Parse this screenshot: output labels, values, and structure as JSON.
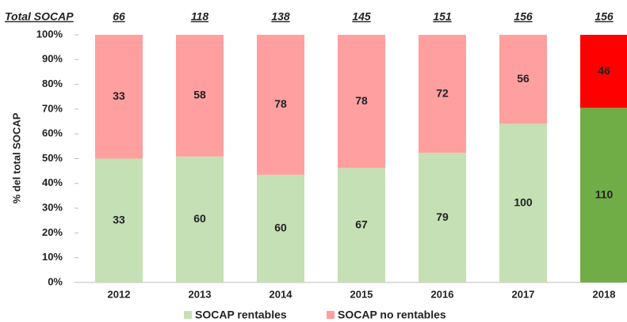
{
  "chart_data": {
    "type": "bar",
    "stacking": "percent",
    "totals_label": "Total SOCAP",
    "totals": [
      66,
      118,
      138,
      145,
      151,
      156,
      156
    ],
    "y_label": "% del total SOCAP",
    "categories": [
      "2012",
      "2013",
      "2014",
      "2015",
      "2016",
      "2017",
      "2018"
    ],
    "series": [
      {
        "name": "SOCAP rentables",
        "color": "#c5e0b4",
        "colors": [
          "#c5e0b4",
          "#c5e0b4",
          "#c5e0b4",
          "#c5e0b4",
          "#c5e0b4",
          "#c5e0b4",
          "#70ad47"
        ],
        "values": [
          33,
          60,
          60,
          67,
          79,
          100,
          110
        ]
      },
      {
        "name": "SOCAP no rentables",
        "color": "#ff9f9f",
        "colors": [
          "#ff9f9f",
          "#ff9f9f",
          "#ff9f9f",
          "#ff9f9f",
          "#ff9f9f",
          "#ff9f9f",
          "#ff0000"
        ],
        "values": [
          33,
          58,
          78,
          78,
          72,
          56,
          46
        ]
      }
    ],
    "ylim": [
      0,
      100
    ],
    "yticks": [
      {
        "value": 0,
        "label": "0%"
      },
      {
        "value": 10,
        "label": "10%"
      },
      {
        "value": 20,
        "label": "20%"
      },
      {
        "value": 30,
        "label": "30%"
      },
      {
        "value": 40,
        "label": "40%"
      },
      {
        "value": 50,
        "label": "50%"
      },
      {
        "value": 60,
        "label": "60%"
      },
      {
        "value": 70,
        "label": "70%"
      },
      {
        "value": 80,
        "label": "80%"
      },
      {
        "value": 90,
        "label": "90%"
      },
      {
        "value": 100,
        "label": "100%"
      }
    ],
    "legend": "bottom"
  }
}
